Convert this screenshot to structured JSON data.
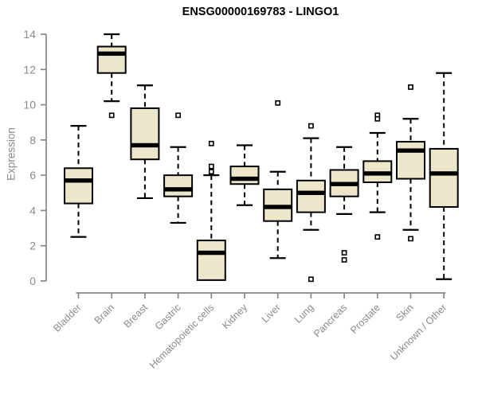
{
  "chart_data": {
    "type": "boxplot",
    "title": "ENSG00000169783 - LINGO1",
    "ylabel": "Expression",
    "xlabel": "",
    "ylim": [
      0,
      14
    ],
    "yticks": [
      0,
      2,
      4,
      6,
      8,
      10,
      12,
      14
    ],
    "grid": false,
    "legend": "none",
    "box_fill": "#ece6cb",
    "box_stroke": "#000000",
    "median_color": "#000000",
    "whisker_color": "#000000",
    "outlier_marker": "open-square",
    "axis_color": "#878787",
    "tick_label_color": "#8a8a8a",
    "title_color": "#000000",
    "categories": [
      "Bladder",
      "Brain",
      "Breast",
      "Gastric",
      "Hematopoietic cells",
      "Kidney",
      "Liver",
      "Lung",
      "Pancreas",
      "Prostate",
      "Skin",
      "Unknown / Other"
    ],
    "series": [
      {
        "category": "Bladder",
        "whisker_low": 2.5,
        "q1": 4.4,
        "median": 5.7,
        "q3": 6.4,
        "whisker_high": 8.8,
        "outliers": []
      },
      {
        "category": "Brain",
        "whisker_low": 10.2,
        "q1": 11.8,
        "median": 12.9,
        "q3": 13.3,
        "whisker_high": 14.0,
        "outliers": [
          9.4
        ]
      },
      {
        "category": "Breast",
        "whisker_low": 4.7,
        "q1": 6.9,
        "median": 7.7,
        "q3": 9.8,
        "whisker_high": 11.1,
        "outliers": []
      },
      {
        "category": "Gastric",
        "whisker_low": 3.3,
        "q1": 4.8,
        "median": 5.2,
        "q3": 6.0,
        "whisker_high": 7.6,
        "outliers": [
          9.4
        ]
      },
      {
        "category": "Hematopoietic cells",
        "whisker_low": 0.05,
        "q1": 0.05,
        "median": 1.6,
        "q3": 2.3,
        "whisker_high": 6.0,
        "outliers": [
          6.2,
          6.5,
          7.8
        ]
      },
      {
        "category": "Kidney",
        "whisker_low": 4.3,
        "q1": 5.5,
        "median": 5.8,
        "q3": 6.5,
        "whisker_high": 7.7,
        "outliers": []
      },
      {
        "category": "Liver",
        "whisker_low": 1.3,
        "q1": 3.4,
        "median": 4.2,
        "q3": 5.2,
        "whisker_high": 6.2,
        "outliers": [
          10.1
        ]
      },
      {
        "category": "Lung",
        "whisker_low": 2.9,
        "q1": 3.9,
        "median": 5.0,
        "q3": 5.7,
        "whisker_high": 8.1,
        "outliers": [
          8.8,
          0.1
        ]
      },
      {
        "category": "Pancreas",
        "whisker_low": 3.8,
        "q1": 4.8,
        "median": 5.5,
        "q3": 6.3,
        "whisker_high": 7.6,
        "outliers": [
          1.6,
          1.2
        ]
      },
      {
        "category": "Prostate",
        "whisker_low": 3.9,
        "q1": 5.6,
        "median": 6.1,
        "q3": 6.8,
        "whisker_high": 8.4,
        "outliers": [
          9.4,
          9.2,
          2.5
        ]
      },
      {
        "category": "Skin",
        "whisker_low": 2.9,
        "q1": 5.8,
        "median": 7.4,
        "q3": 7.9,
        "whisker_high": 9.2,
        "outliers": [
          11.0,
          2.4
        ]
      },
      {
        "category": "Unknown / Other",
        "whisker_low": 0.1,
        "q1": 4.2,
        "median": 6.1,
        "q3": 7.5,
        "whisker_high": 11.8,
        "outliers": []
      }
    ]
  }
}
